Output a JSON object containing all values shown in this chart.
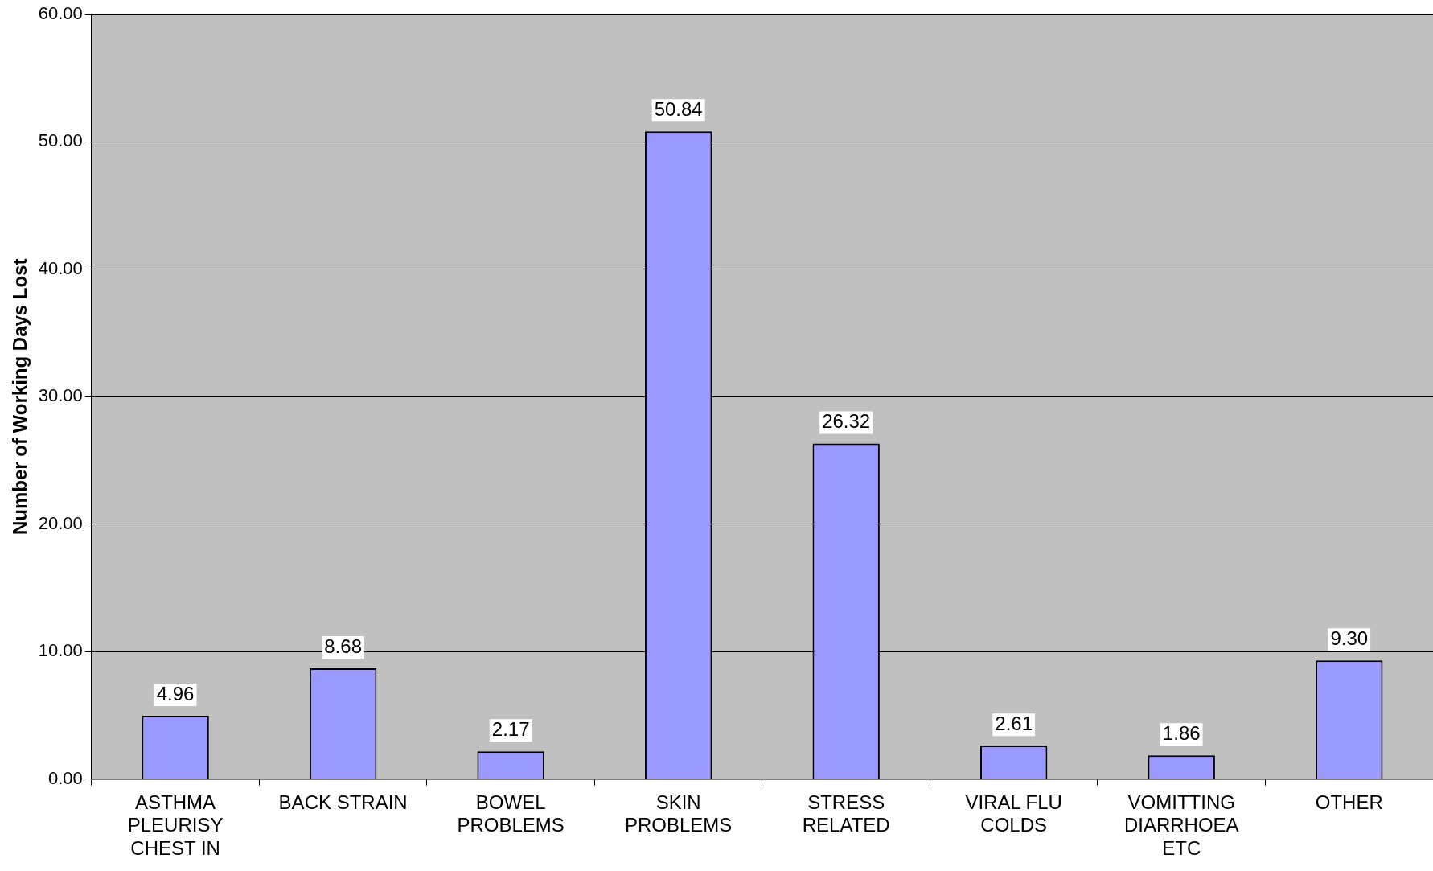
{
  "chart_data": {
    "type": "bar",
    "ylabel": "Number of Working Days Lost",
    "categories": [
      "ASTHMA PLEURISY CHEST IN",
      "BACK STRAIN",
      "BOWEL PROBLEMS",
      "SKIN PROBLEMS",
      "STRESS RELATED",
      "VIRAL FLU COLDS",
      "VOMITTING DIARRHOEA ETC",
      "OTHER"
    ],
    "values": [
      4.96,
      8.68,
      2.17,
      50.84,
      26.32,
      2.61,
      1.86,
      9.3
    ],
    "value_labels": [
      "4.96",
      "8.68",
      "2.17",
      "50.84",
      "26.32",
      "2.61",
      "1.86",
      "9.30"
    ],
    "color": "#9999ff",
    "ylim": [
      0,
      60
    ],
    "yticks": [
      {
        "value": 0,
        "label": "0.00"
      },
      {
        "value": 10,
        "label": "10.00"
      },
      {
        "value": 20,
        "label": "20.00"
      },
      {
        "value": 30,
        "label": "30.00"
      },
      {
        "value": 40,
        "label": "40.00"
      },
      {
        "value": 50,
        "label": "50.00"
      },
      {
        "value": 60,
        "label": "60.00"
      }
    ],
    "grid": "y",
    "legend": false
  }
}
